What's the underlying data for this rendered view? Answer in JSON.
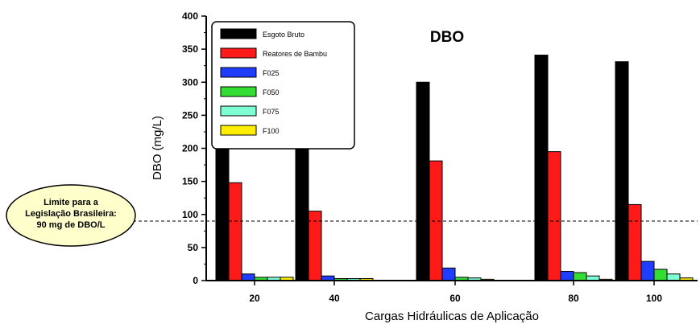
{
  "chart_data": {
    "type": "bar",
    "title": "DBO",
    "xlabel": "Cargas Hidráulicas de Aplicação",
    "ylabel": "DBO (mg/L)",
    "ylim": [
      0,
      400
    ],
    "yticks": [
      0,
      50,
      100,
      150,
      200,
      250,
      300,
      350,
      400
    ],
    "categories": [
      "20",
      "40",
      "60",
      "80",
      "100"
    ],
    "legend_position": "top-left",
    "grid": false,
    "series": [
      {
        "name": "Esgoto Bruto",
        "color": "#000000",
        "values": [
          200,
          286,
          300,
          341,
          331
        ]
      },
      {
        "name": "Reatores de Bambu",
        "color": "#ff1a1a",
        "values": [
          148,
          105,
          181,
          195,
          115
        ]
      },
      {
        "name": "F025",
        "color": "#1f3dff",
        "values": [
          10,
          7,
          19,
          14,
          29
        ]
      },
      {
        "name": "F050",
        "color": "#33dd33",
        "values": [
          5,
          3,
          5,
          12,
          17
        ]
      },
      {
        "name": "F075",
        "color": "#7fffd4",
        "values": [
          5,
          3,
          4,
          7,
          10
        ]
      },
      {
        "name": "F100",
        "color": "#ffee00",
        "values": [
          5,
          3,
          2,
          2,
          4
        ]
      }
    ],
    "reference_line": {
      "value": 90,
      "style": "dashed"
    },
    "annotation": {
      "lines": [
        "Limite para a",
        "Legislação Brasileira:",
        "90 mg de DBO/L"
      ],
      "fill": "#ffffcc"
    }
  }
}
